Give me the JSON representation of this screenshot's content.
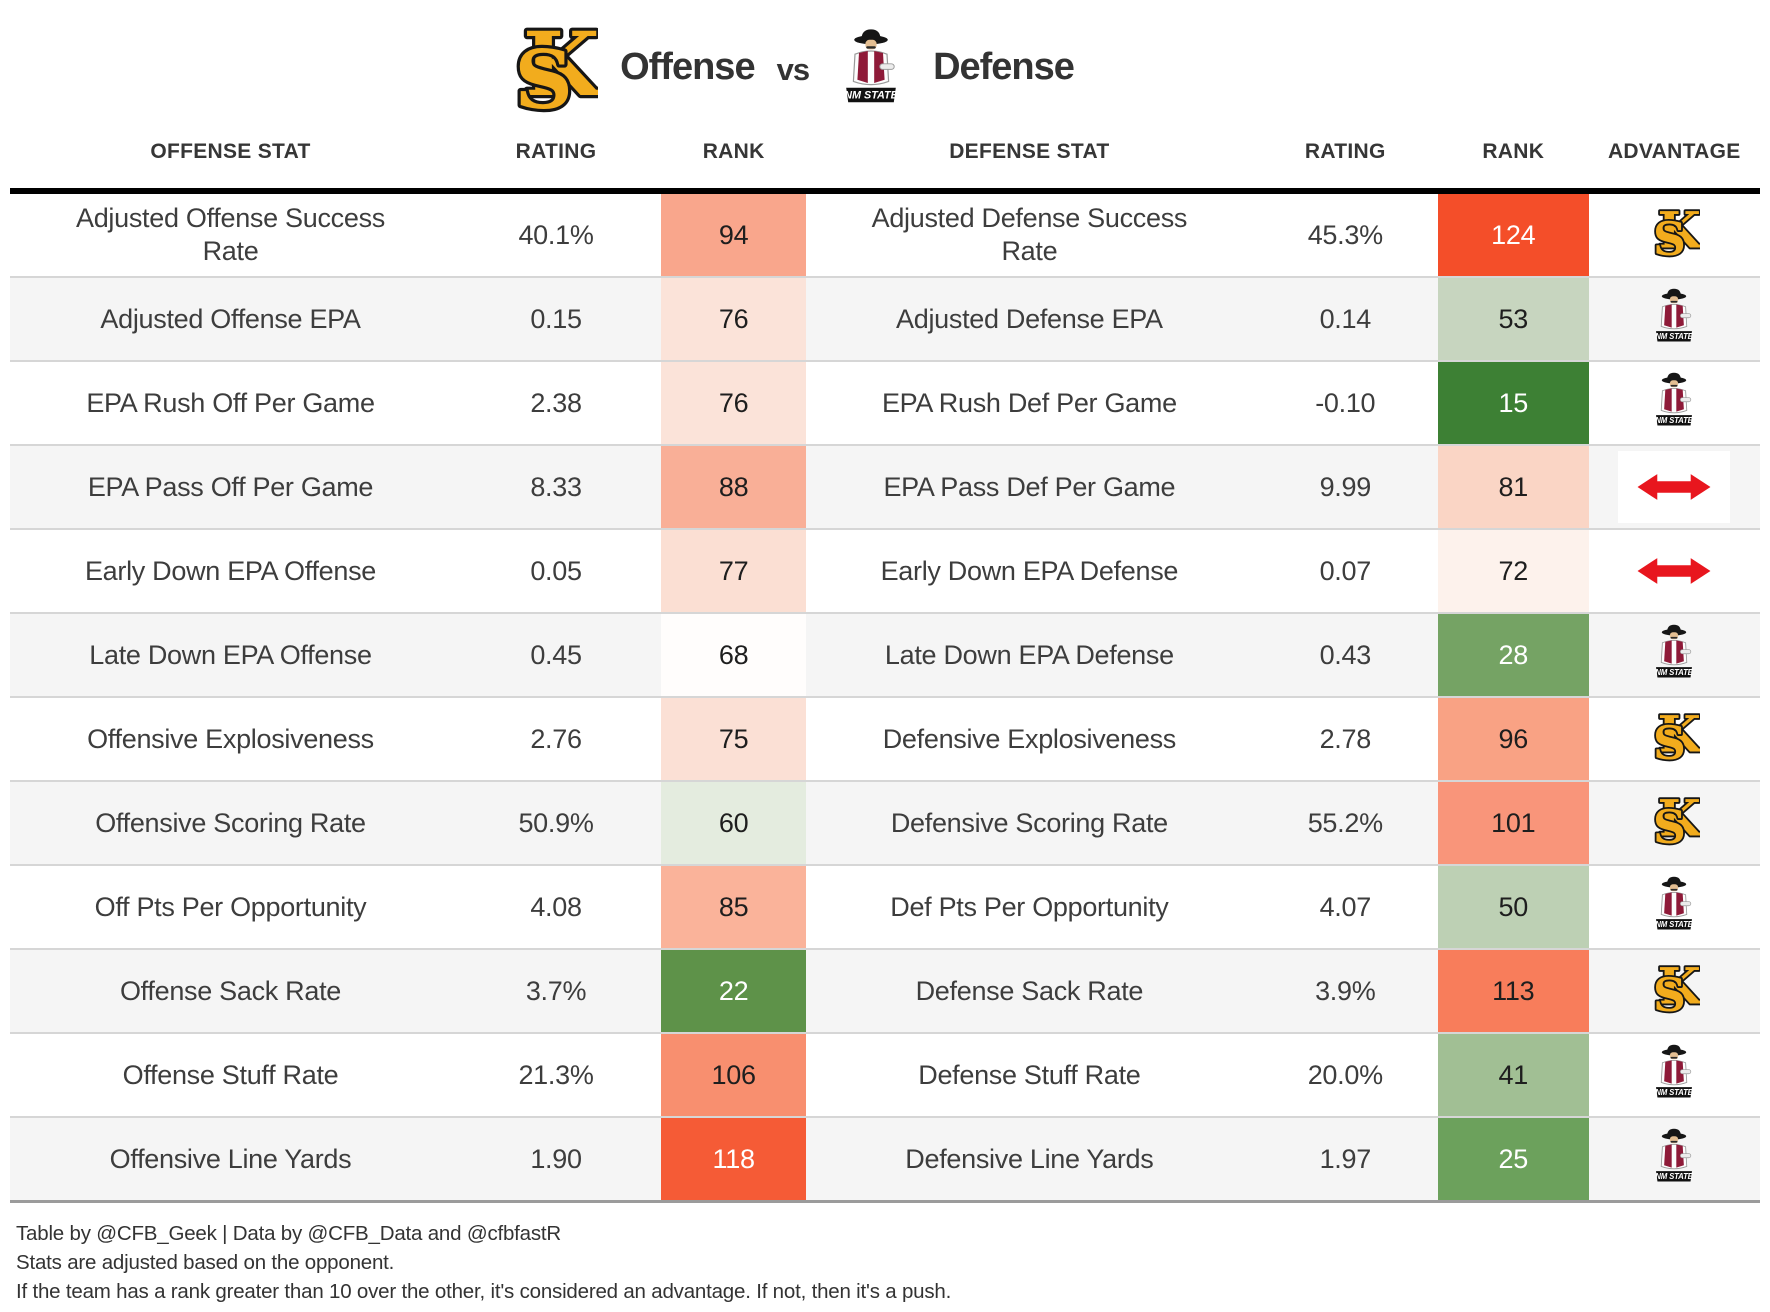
{
  "title": {
    "offense_label": "Offense",
    "vs_label": "vs",
    "defense_label": "Defense"
  },
  "logos": {
    "kennesaw_monogram_letters": [
      "K",
      "S"
    ],
    "nm_state_banner_text": "NM STATE"
  },
  "colors": {
    "ks_gold": "#F2AC1D",
    "ks_outline": "#161616",
    "nmsu_maroon": "#8E1A38",
    "push_arrow_red": "#E8161E",
    "header_rule_black": "#000000",
    "row_stripe_gray": "#f5f5f5",
    "row_divider_gray": "#d6d6d6",
    "table_bottom_gray": "#9b9b9b",
    "dark_text": "#1e1e1e",
    "light_text": "#ffffff"
  },
  "advantage_icons": {
    "KS": "kennesaw-state-logo",
    "NMSU": "nm-state-logo",
    "PUSH": "push-arrow-icon"
  },
  "chart_data": {
    "type": "table",
    "title": "Offense vs Defense",
    "columns": [
      "OFFENSE STAT",
      "RATING",
      "RANK",
      "DEFENSE STAT",
      "RATING",
      "RANK",
      "ADVANTAGE"
    ],
    "rows": [
      {
        "offense": {
          "stat": "Adjusted Offense Success Rate",
          "rating": "40.1%",
          "rank": "94",
          "rank_bg": "#F9A68C",
          "rank_text": "#1e1e1e"
        },
        "defense": {
          "stat": "Adjusted Defense Success Rate",
          "rating": "45.3%",
          "rank": "124",
          "rank_bg": "#F44E29",
          "rank_text": "#ffffff"
        },
        "advantage": "KS"
      },
      {
        "offense": {
          "stat": "Adjusted Offense EPA",
          "rating": "0.15",
          "rank": "76",
          "rank_bg": "#FBE3D9",
          "rank_text": "#1e1e1e"
        },
        "defense": {
          "stat": "Adjusted Defense EPA",
          "rating": "0.14",
          "rank": "53",
          "rank_bg": "#C7D5BF",
          "rank_text": "#1e1e1e"
        },
        "advantage": "NMSU"
      },
      {
        "offense": {
          "stat": "EPA Rush Off Per Game",
          "rating": "2.38",
          "rank": "76",
          "rank_bg": "#FBE3D9",
          "rank_text": "#1e1e1e"
        },
        "defense": {
          "stat": "EPA Rush Def Per Game",
          "rating": "-0.10",
          "rank": "15",
          "rank_bg": "#3D8034",
          "rank_text": "#ffffff"
        },
        "advantage": "NMSU"
      },
      {
        "offense": {
          "stat": "EPA Pass Off Per Game",
          "rating": "8.33",
          "rank": "88",
          "rank_bg": "#F9AF97",
          "rank_text": "#1e1e1e"
        },
        "defense": {
          "stat": "EPA Pass Def Per Game",
          "rating": "9.99",
          "rank": "81",
          "rank_bg": "#FAD5C5",
          "rank_text": "#1e1e1e"
        },
        "advantage": "PUSH"
      },
      {
        "offense": {
          "stat": "Early Down EPA Offense",
          "rating": "0.05",
          "rank": "77",
          "rank_bg": "#FBDFD3",
          "rank_text": "#1e1e1e"
        },
        "defense": {
          "stat": "Early Down EPA Defense",
          "rating": "0.07",
          "rank": "72",
          "rank_bg": "#FDF2EC",
          "rank_text": "#1e1e1e"
        },
        "advantage": "PUSH"
      },
      {
        "offense": {
          "stat": "Late Down EPA Offense",
          "rating": "0.45",
          "rank": "68",
          "rank_bg": "#FFFDFC",
          "rank_text": "#1e1e1e"
        },
        "defense": {
          "stat": "Late Down EPA Defense",
          "rating": "0.43",
          "rank": "28",
          "rank_bg": "#75A364",
          "rank_text": "#ffffff"
        },
        "advantage": "NMSU"
      },
      {
        "offense": {
          "stat": "Offensive Explosiveness",
          "rating": "2.76",
          "rank": "75",
          "rank_bg": "#FBE0D5",
          "rank_text": "#1e1e1e"
        },
        "defense": {
          "stat": "Defensive Explosiveness",
          "rating": "2.78",
          "rank": "96",
          "rank_bg": "#F9A284",
          "rank_text": "#1e1e1e"
        },
        "advantage": "KS"
      },
      {
        "offense": {
          "stat": "Offensive Scoring Rate",
          "rating": "50.9%",
          "rank": "60",
          "rank_bg": "#E4ECDF",
          "rank_text": "#1e1e1e"
        },
        "defense": {
          "stat": "Defensive Scoring Rate",
          "rating": "55.2%",
          "rank": "101",
          "rank_bg": "#F9957A",
          "rank_text": "#1e1e1e"
        },
        "advantage": "KS"
      },
      {
        "offense": {
          "stat": "Off Pts Per Opportunity",
          "rating": "4.08",
          "rank": "85",
          "rank_bg": "#FAB39A",
          "rank_text": "#1e1e1e"
        },
        "defense": {
          "stat": "Def Pts Per Opportunity",
          "rating": "4.07",
          "rank": "50",
          "rank_bg": "#BDD0B4",
          "rank_text": "#1e1e1e"
        },
        "advantage": "NMSU"
      },
      {
        "offense": {
          "stat": "Offense Sack Rate",
          "rating": "3.7%",
          "rank": "22",
          "rank_bg": "#5E9249",
          "rank_text": "#ffffff"
        },
        "defense": {
          "stat": "Defense Sack Rate",
          "rating": "3.9%",
          "rank": "113",
          "rank_bg": "#F87D5B",
          "rank_text": "#1e1e1e"
        },
        "advantage": "KS"
      },
      {
        "offense": {
          "stat": "Offense Stuff Rate",
          "rating": "21.3%",
          "rank": "106",
          "rank_bg": "#F88F6F",
          "rank_text": "#1e1e1e"
        },
        "defense": {
          "stat": "Defense Stuff Rate",
          "rating": "20.0%",
          "rank": "41",
          "rank_bg": "#A1BF94",
          "rank_text": "#1e1e1e"
        },
        "advantage": "NMSU"
      },
      {
        "offense": {
          "stat": "Offensive Line Yards",
          "rating": "1.90",
          "rank": "118",
          "rank_bg": "#F55B36",
          "rank_text": "#ffffff"
        },
        "defense": {
          "stat": "Defensive Line Yards",
          "rating": "1.97",
          "rank": "25",
          "rank_bg": "#6CA15C",
          "rank_text": "#ffffff"
        },
        "advantage": "NMSU"
      }
    ],
    "footnotes": [
      "Table by @CFB_Geek | Data by @CFB_Data and @cfbfastR",
      "Stats are adjusted based on the opponent.",
      "If the team has a rank greater than 10 over the other, it's considered an advantage. If not, then it's a push."
    ]
  }
}
